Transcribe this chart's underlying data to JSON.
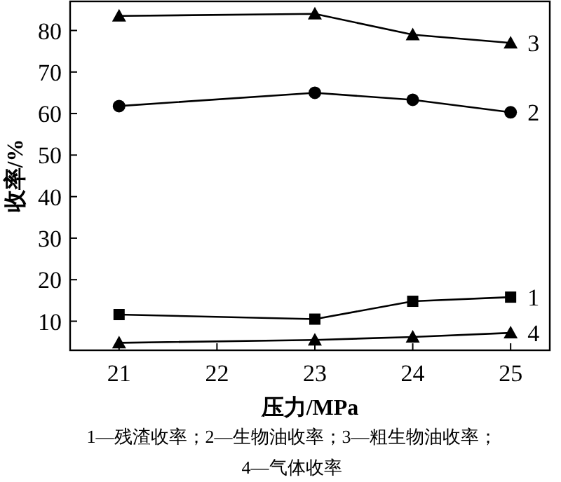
{
  "chart_data": {
    "type": "line",
    "xlabel": "压力/MPa",
    "ylabel": "收率/%",
    "x": [
      21,
      23,
      24,
      25
    ],
    "xlim": [
      20.5,
      25.4
    ],
    "xticks": [
      21,
      22,
      23,
      24,
      25
    ],
    "ylim": [
      3,
      87
    ],
    "yticks": [
      10,
      20,
      30,
      40,
      50,
      60,
      70,
      80
    ],
    "grid": false,
    "line_style": "solid",
    "series": [
      {
        "name": "1",
        "color": "#000000",
        "marker": "square",
        "values": [
          11.6,
          10.5,
          14.8,
          15.8
        ]
      },
      {
        "name": "2",
        "color": "#000000",
        "marker": "circle",
        "values": [
          61.8,
          65,
          63.3,
          60.3
        ]
      },
      {
        "name": "3",
        "color": "#000000",
        "marker": "triangle",
        "values": [
          83.5,
          84,
          79,
          77
        ]
      },
      {
        "name": "4",
        "color": "#000000",
        "marker": "triangle",
        "values": [
          4.8,
          5.5,
          6.2,
          7.2
        ]
      }
    ],
    "annotations": [
      "1—残渣收率；2—生物油收率；3—粗生物油收率；",
      "4—气体收率"
    ]
  }
}
